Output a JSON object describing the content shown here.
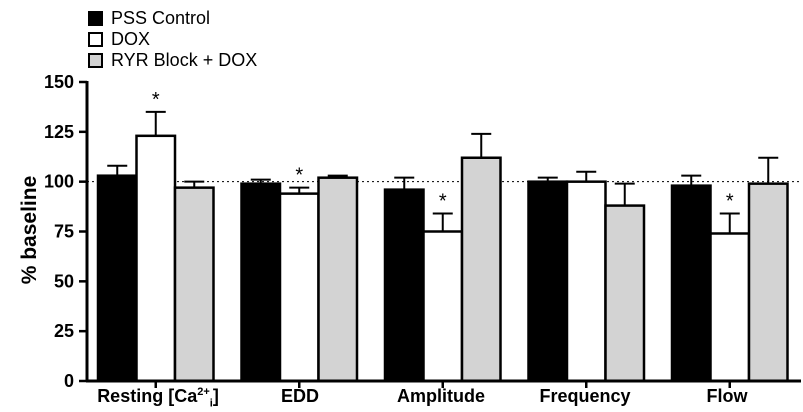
{
  "chart_data": {
    "type": "bar",
    "categories": [
      "Resting [Ca2+i]",
      "EDD",
      "Amplitude",
      "Frequency",
      "Flow"
    ],
    "category_display": {
      "ca": {
        "pre": "Resting [Ca",
        "sup": "2+",
        "sub": "i",
        "post": "]"
      }
    },
    "series": [
      {
        "name": "PSS Control",
        "color": "#000000",
        "values": [
          103,
          99,
          96,
          100,
          98
        ],
        "errors": [
          5,
          2,
          6,
          2,
          5
        ]
      },
      {
        "name": "DOX",
        "color": "#ffffff",
        "values": [
          123,
          94,
          75,
          100,
          74
        ],
        "errors": [
          12,
          3,
          9,
          5,
          10
        ]
      },
      {
        "name": "RYR Block + DOX",
        "color": "#d3d3d3",
        "values": [
          97,
          102,
          112,
          88,
          99
        ],
        "errors": [
          3,
          1,
          12,
          11,
          13
        ]
      }
    ],
    "significance": [
      {
        "category": 0,
        "series": 1,
        "label": "*"
      },
      {
        "category": 1,
        "series": 1,
        "label": "*"
      },
      {
        "category": 2,
        "series": 1,
        "label": "*"
      },
      {
        "category": 4,
        "series": 1,
        "label": "*"
      }
    ],
    "ylabel": "% baseline",
    "xlabel": "",
    "ylim": [
      0,
      150
    ],
    "yticks": [
      0,
      25,
      50,
      75,
      100,
      125,
      150
    ],
    "reference_line": 100,
    "legend_position": "top-left",
    "grid": false
  }
}
